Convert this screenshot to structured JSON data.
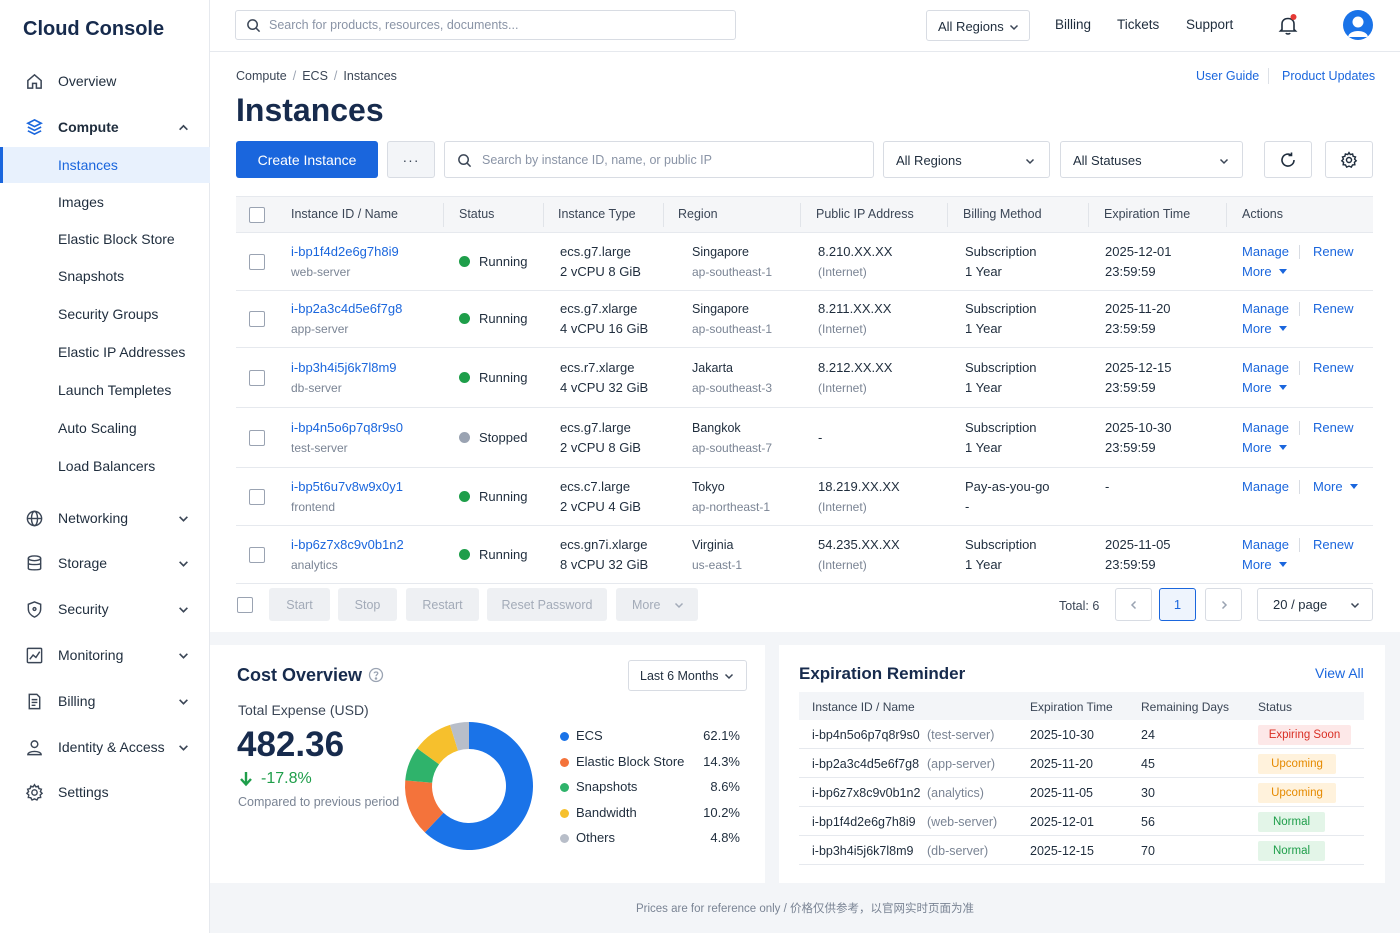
{
  "brand": "Cloud Console",
  "nav": {
    "overview": "Overview",
    "compute": "Compute",
    "compute_items": [
      "Instances",
      "Images",
      "Elastic Block Store",
      "Snapshots",
      "Security Groups",
      "Elastic IP Addresses",
      "Launch Templetes",
      "Auto Scaling",
      "Load Balancers"
    ],
    "networking": "Networking",
    "storage": "Storage",
    "security": "Security",
    "monitoring": "Monitoring",
    "billing": "Billing",
    "identity": "Identity & Access",
    "settings": "Settings"
  },
  "topbar": {
    "search_placeholder": "Search for products, resources, documents...",
    "region": "All Regions",
    "billing": "Billing",
    "tickets": "Tickets",
    "support": "Support"
  },
  "breadcrumb": [
    "Compute",
    "ECS",
    "Instances"
  ],
  "links": {
    "user_guide": "User Guide",
    "product_updates": "Product Updates"
  },
  "page_title": "Instances",
  "toolbar": {
    "create_label": "Create Instance",
    "more_label": "···",
    "search_placeholder": "Search by instance ID, name, or public IP",
    "region_filter": "All Regions",
    "status_filter": "All Statuses"
  },
  "table": {
    "headers": [
      "Instance ID / Name",
      "Status",
      "Instance Type",
      "Region",
      "Public IP Address",
      "Billing Method",
      "Expiration Time",
      "Actions"
    ],
    "rows": [
      {
        "id": "i-bp1f4d2e6g7h8i9",
        "name": "web-server",
        "status": "Running",
        "type": "ecs.g7.large",
        "spec": "2 vCPU 8 GiB",
        "region": "Singapore",
        "zone": "ap-southeast-1",
        "ip": "8.210.XX.XX",
        "ipnote": "(Internet)",
        "billing": "Subscription",
        "term": "1 Year",
        "exp_date": "2025-12-01",
        "exp_time": "23:59:59",
        "a1": "Manage",
        "a2": "Renew",
        "a3": "More"
      },
      {
        "id": "i-bp2a3c4d5e6f7g8",
        "name": "app-server",
        "status": "Running",
        "type": "ecs.g7.xlarge",
        "spec": "4 vCPU 16 GiB",
        "region": "Singapore",
        "zone": "ap-southeast-1",
        "ip": "8.211.XX.XX",
        "ipnote": "(Internet)",
        "billing": "Subscription",
        "term": "1 Year",
        "exp_date": "2025-11-20",
        "exp_time": "23:59:59",
        "a1": "Manage",
        "a2": "Renew",
        "a3": "More"
      },
      {
        "id": "i-bp3h4i5j6k7l8m9",
        "name": "db-server",
        "status": "Running",
        "type": "ecs.r7.xlarge",
        "spec": "4 vCPU 32 GiB",
        "region": "Jakarta",
        "zone": "ap-southeast-3",
        "ip": "8.212.XX.XX",
        "ipnote": "(Internet)",
        "billing": "Subscription",
        "term": "1 Year",
        "exp_date": "2025-12-15",
        "exp_time": "23:59:59",
        "a1": "Manage",
        "a2": "Renew",
        "a3": "More"
      },
      {
        "id": "i-bp4n5o6p7q8r9s0",
        "name": "test-server",
        "status": "Stopped",
        "type": "ecs.g7.large",
        "spec": "2 vCPU 8 GiB",
        "region": "Bangkok",
        "zone": "ap-southeast-7",
        "ip": "-",
        "ipnote": "",
        "billing": "Subscription",
        "term": "1 Year",
        "exp_date": "2025-10-30",
        "exp_time": "23:59:59",
        "a1": "Manage",
        "a2": "Renew",
        "a3": "More"
      },
      {
        "id": "i-bp5t6u7v8w9x0y1",
        "name": "frontend",
        "status": "Running",
        "type": "ecs.c7.large",
        "spec": "2 vCPU 4 GiB",
        "region": "Tokyo",
        "zone": "ap-northeast-1",
        "ip": "18.219.XX.XX",
        "ipnote": "(Internet)",
        "billing": "Pay-as-you-go",
        "term": "-",
        "exp_date": "-",
        "exp_time": "",
        "a1": "Manage",
        "a2": "More",
        "a3": ""
      },
      {
        "id": "i-bp6z7x8c9v0b1n2",
        "name": "analytics",
        "status": "Running",
        "type": "ecs.gn7i.xlarge",
        "spec": "8 vCPU 32 GiB",
        "region": "Virginia",
        "zone": "us-east-1",
        "ip": "54.235.XX.XX",
        "ipnote": "(Internet)",
        "billing": "Subscription",
        "term": "1 Year",
        "exp_date": "2025-11-05",
        "exp_time": "23:59:59",
        "a1": "Manage",
        "a2": "Renew",
        "a3": "More"
      }
    ]
  },
  "bulk": {
    "start": "Start",
    "stop": "Stop",
    "restart": "Restart",
    "reset": "Reset Password",
    "more": "More"
  },
  "pagination": {
    "total": "Total: 6",
    "page": "1",
    "size": "20 / page"
  },
  "cost": {
    "title": "Cost Overview",
    "range": "Last 6 Months",
    "label": "Total Expense (USD)",
    "total": "482.36",
    "change": "-17.8%",
    "compare": "Compared to previous period"
  },
  "chart_data": {
    "type": "pie",
    "categories": [
      "ECS",
      "Elastic Block Store",
      "Snapshots",
      "Bandwidth",
      "Others"
    ],
    "values": [
      62.1,
      14.3,
      8.6,
      10.2,
      4.8
    ],
    "labels": [
      "62.1%",
      "14.3%",
      "8.6%",
      "10.2%",
      "4.8%"
    ],
    "colors": [
      "#1a73e8",
      "#f4733b",
      "#2fb36b",
      "#f6c02d",
      "#b8bec9"
    ]
  },
  "expiration": {
    "title": "Expiration Reminder",
    "view_all": "View All",
    "headers": [
      "Instance ID / Name",
      "Expiration Time",
      "Remaining Days",
      "Status"
    ],
    "rows": [
      {
        "id": "i-bp4n5o6p7q8r9s0",
        "name": "(test-server)",
        "date": "2025-10-30",
        "days": "24",
        "status": "Expiring Soon",
        "kind": "red"
      },
      {
        "id": "i-bp2a3c4d5e6f7g8",
        "name": "(app-server)",
        "date": "2025-11-20",
        "days": "45",
        "status": "Upcoming",
        "kind": "orange"
      },
      {
        "id": "i-bp6z7x8c9v0b1n2",
        "name": "(analytics)",
        "date": "2025-11-05",
        "days": "30",
        "status": "Upcoming",
        "kind": "orange"
      },
      {
        "id": "i-bp1f4d2e6g7h8i9",
        "name": "(web-server)",
        "date": "2025-12-01",
        "days": "56",
        "status": "Normal",
        "kind": "green"
      },
      {
        "id": "i-bp3h4i5j6k7l8m9",
        "name": "(db-server)",
        "date": "2025-12-15",
        "days": "70",
        "status": "Normal",
        "kind": "green"
      }
    ]
  },
  "footer": "Prices are for reference only  /  价格仅供参考，以官网实时页面为准",
  "colors": {
    "accent": "#1a66dd",
    "running": "#1e9e4a",
    "stopped": "#9aa3b2"
  }
}
